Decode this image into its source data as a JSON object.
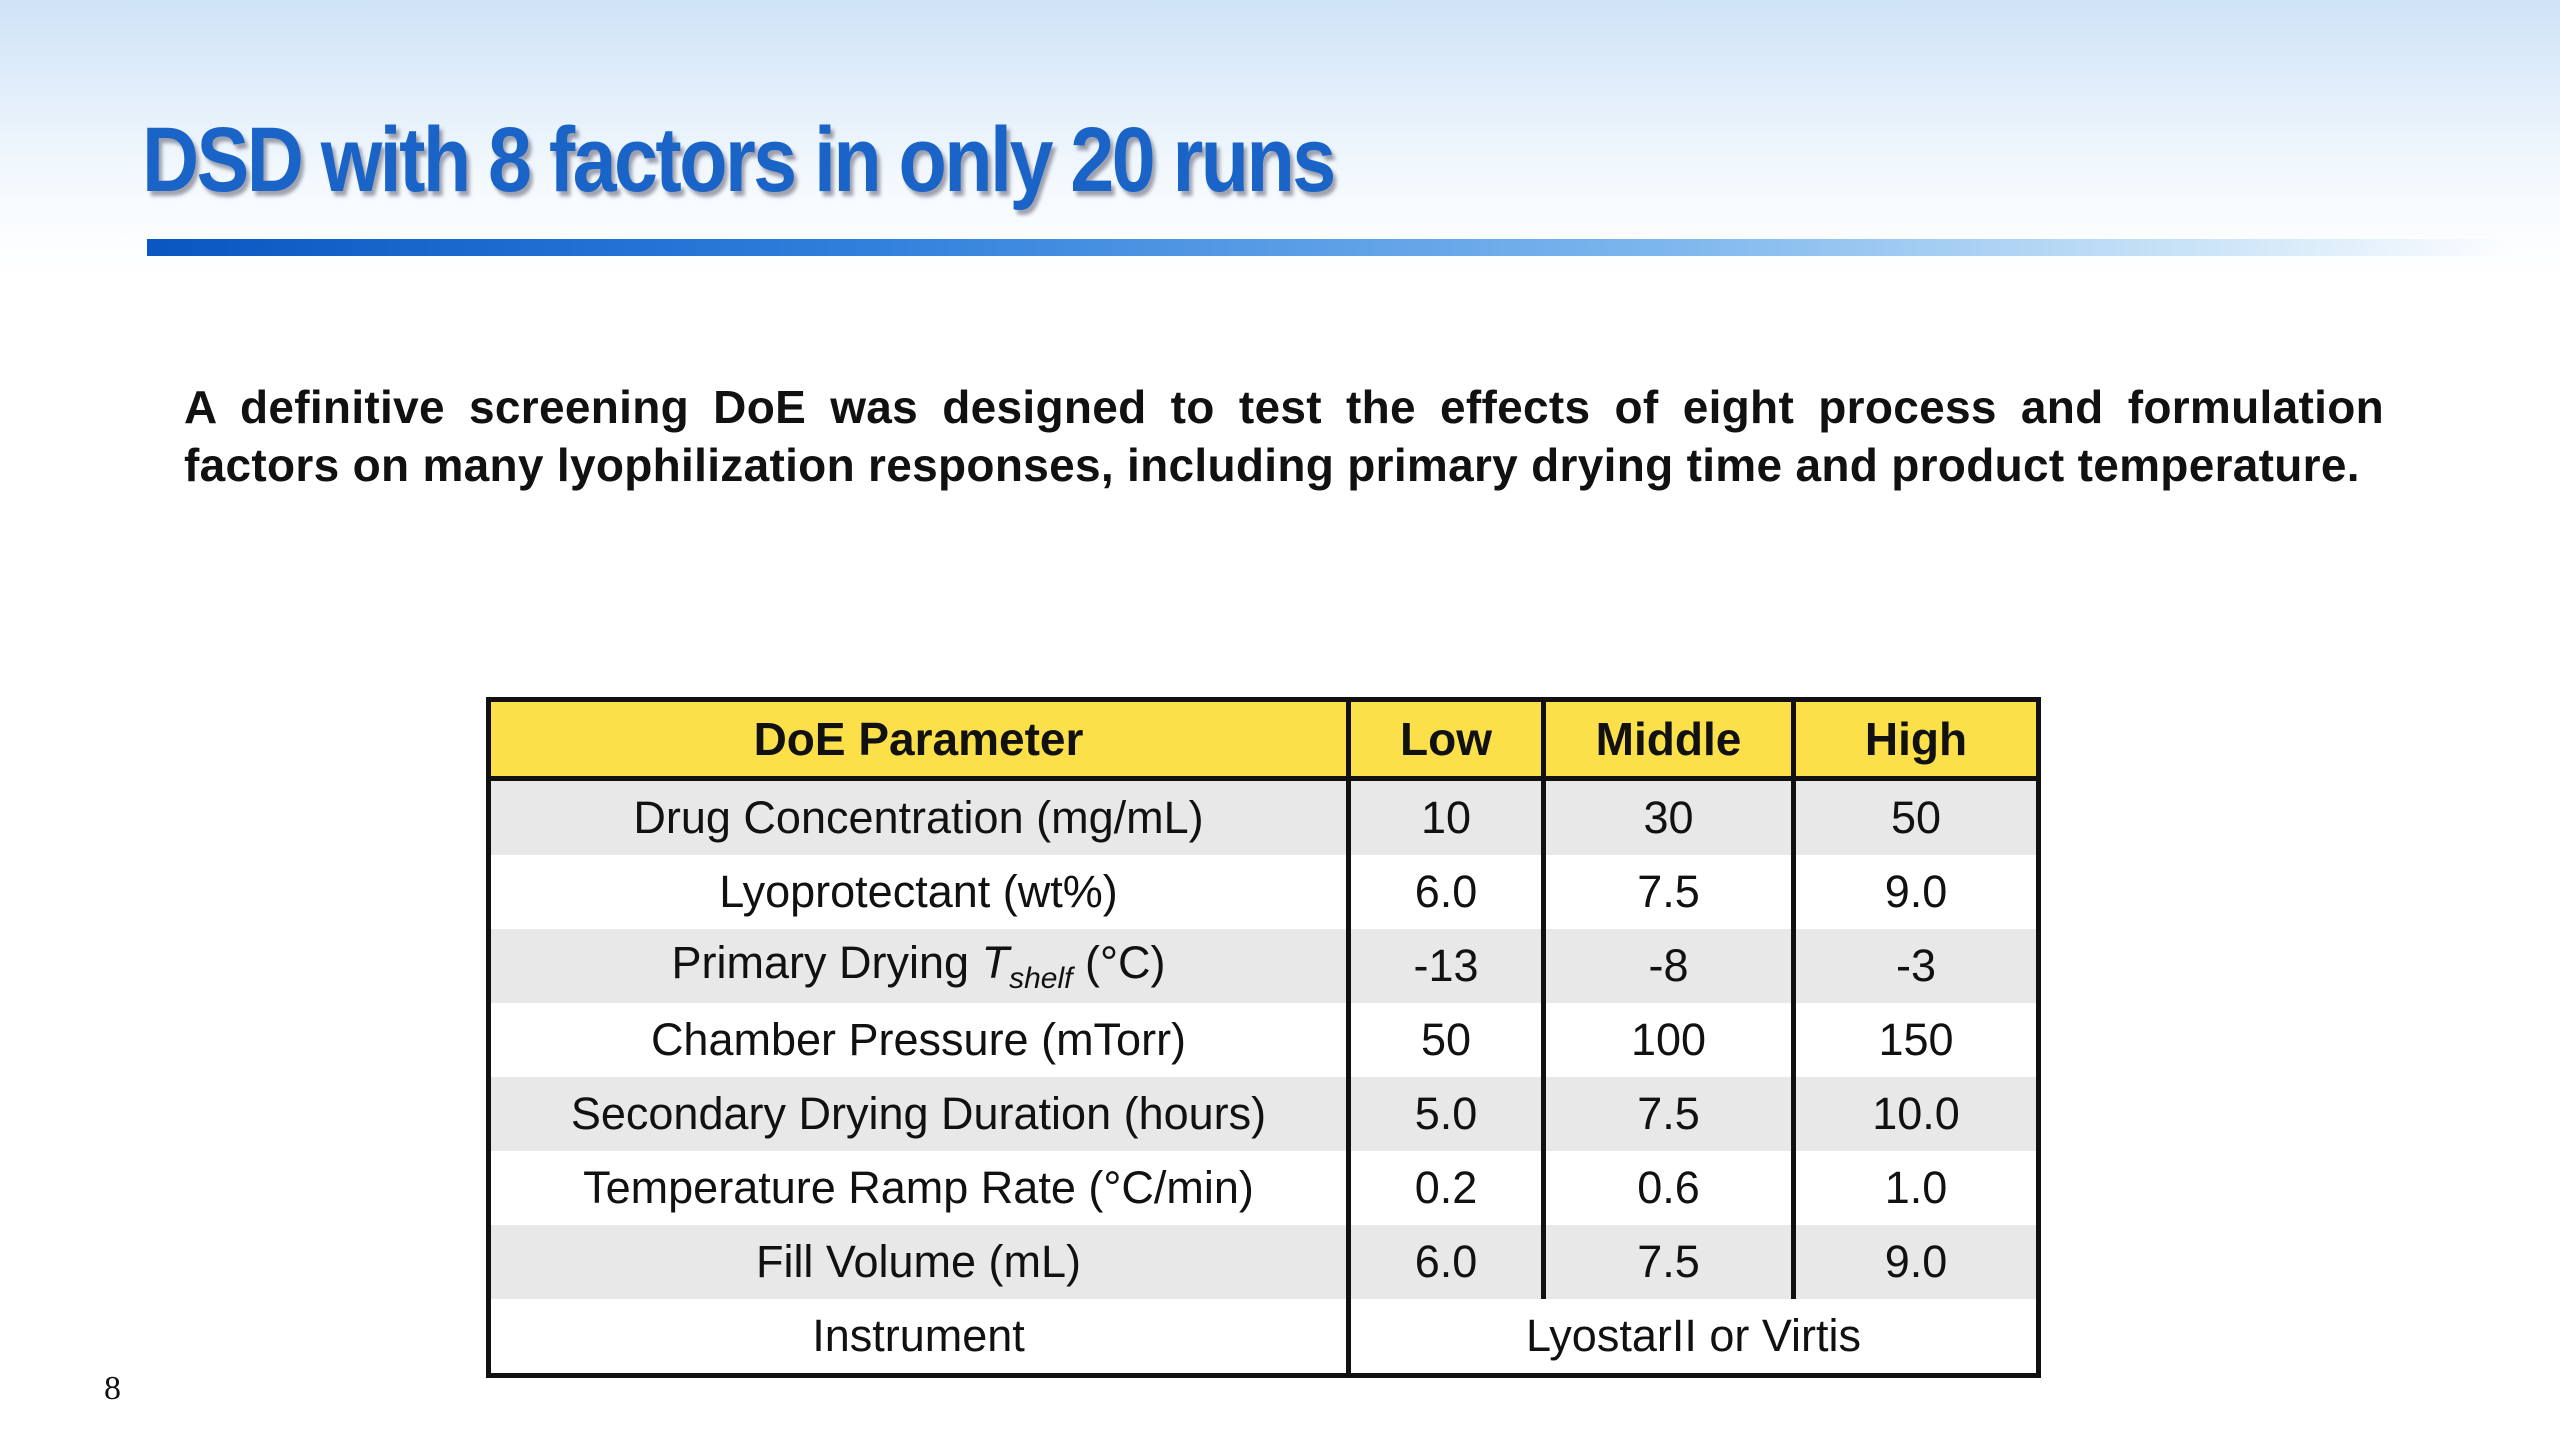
{
  "slide": {
    "title": "DSD with 8 factors in only 20 runs",
    "description": "A definitive screening DoE was designed to test the effects of eight process and formulation factors on many lyophilization responses, including primary drying time and product temperature.",
    "page_number": "8"
  },
  "table": {
    "headers": [
      "DoE Parameter",
      "Low",
      "Middle",
      "High"
    ],
    "rows": [
      {
        "parameter": "Drug Concentration (mg/mL)",
        "low": "10",
        "middle": "30",
        "high": "50"
      },
      {
        "parameter": "Lyoprotectant (wt%)",
        "low": "6.0",
        "middle": "7.5",
        "high": "9.0"
      },
      {
        "parameter_prefix": "Primary Drying ",
        "parameter_symbol": "T",
        "parameter_subscript": "shelf",
        "parameter_suffix": " (°C)",
        "low": "-13",
        "middle": "-8",
        "high": "-3"
      },
      {
        "parameter": "Chamber Pressure (mTorr)",
        "low": "50",
        "middle": "100",
        "high": "150"
      },
      {
        "parameter": "Secondary Drying Duration (hours)",
        "low": "5.0",
        "middle": "7.5",
        "high": "10.0"
      },
      {
        "parameter": "Temperature Ramp Rate (°C/min)",
        "low": "0.2",
        "middle": "0.6",
        "high": "1.0"
      },
      {
        "parameter": "Fill Volume (mL)",
        "low": "6.0",
        "middle": "7.5",
        "high": "9.0"
      }
    ],
    "instrument": {
      "label": "Instrument",
      "value": "LyostarII or Virtis"
    },
    "colors": {
      "header_bg": "#fbe04a",
      "shaded_row_bg": "#e8e8e8"
    }
  }
}
